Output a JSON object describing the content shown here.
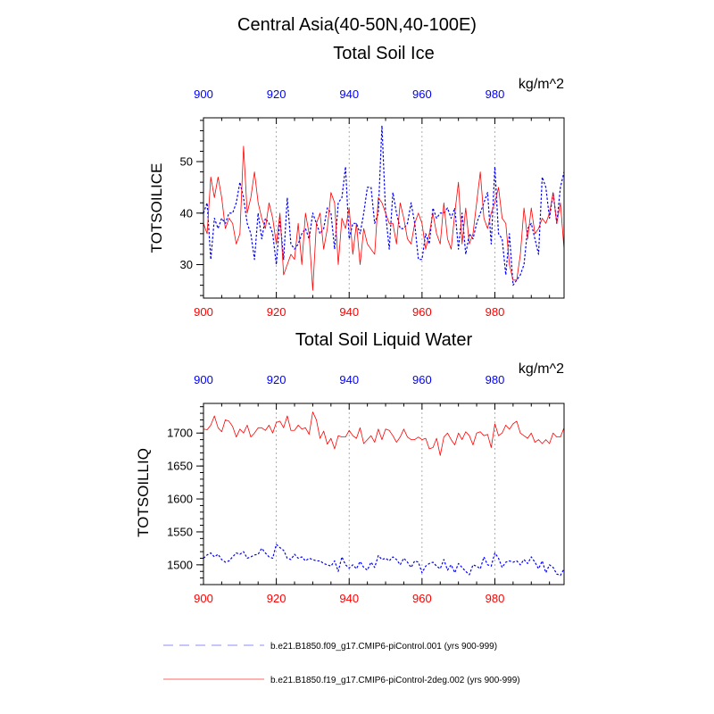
{
  "figure": {
    "main_title": "Central Asia(40-50N,40-100E)"
  },
  "colors": {
    "red": "#ff0000",
    "blue": "#0000ff",
    "axis": "#000000",
    "grid": "#9a9a9a"
  },
  "legend": {
    "entries": [
      {
        "label": "b.e21.B1850.f09_g17.CMIP6-piControl.001 (yrs 900-999)",
        "color": "#0000ff",
        "style": "dashed"
      },
      {
        "label": "b.e21.B1850.f19_g17.CMIP6-piControl-2deg.002 (yrs 900-999)",
        "color": "#ff0000",
        "style": "solid"
      }
    ]
  },
  "chart_data": [
    {
      "type": "line",
      "title": "Total Soil Ice",
      "units": "kg/m^2",
      "ylabel": "TOTSOILICE",
      "xlabel": "",
      "xlim": [
        900,
        999
      ],
      "ylim": [
        23.5,
        58.5
      ],
      "xticks": [
        900,
        920,
        940,
        960,
        980
      ],
      "yticks": [
        30,
        40,
        50
      ],
      "yminor_step": 2,
      "xminor_step": 5,
      "grid_x": [
        920,
        940,
        960,
        980
      ],
      "series": [
        {
          "name": "b.e21.B1850.f09_g17.CMIP6-piControl.001 (yrs 900-999)",
          "color": "#0000ff",
          "style": "dashed",
          "x_start": 900,
          "values": [
            40,
            42,
            31,
            39,
            37,
            39,
            38,
            40,
            40,
            42,
            46,
            43,
            38,
            36,
            31,
            40,
            35,
            39,
            38,
            36,
            30,
            39,
            31,
            43,
            34,
            33,
            34,
            36,
            37,
            35,
            40,
            38,
            36,
            37,
            41,
            40,
            33,
            42,
            43,
            49,
            35,
            38,
            38,
            36,
            40,
            45,
            45,
            38,
            40,
            57,
            40,
            33,
            44,
            40,
            37,
            37,
            38,
            42,
            38,
            31,
            31,
            36,
            34,
            41,
            39,
            40,
            40,
            41,
            39,
            41,
            33,
            40,
            32,
            36,
            35,
            38,
            40,
            42,
            44,
            34,
            49,
            36,
            35,
            28,
            36,
            26,
            27,
            28,
            30,
            37,
            38,
            35,
            32,
            47,
            45,
            39,
            44,
            38,
            45,
            48
          ]
        },
        {
          "name": "b.e21.B1850.f19_g17.CMIP6-piControl-2deg.002 (yrs 900-999)",
          "color": "#ff0000",
          "style": "solid",
          "x_start": 900,
          "values": [
            38,
            36,
            47,
            43,
            47,
            43,
            37,
            39,
            38,
            34,
            36,
            53,
            40,
            43,
            48,
            42,
            39,
            37,
            42,
            39,
            34,
            40,
            28,
            30,
            32,
            31,
            38,
            30,
            40,
            36,
            25,
            38,
            40,
            33,
            37,
            44,
            42,
            30,
            39,
            37,
            41,
            32,
            38,
            30,
            37,
            34,
            33,
            32,
            43,
            42,
            40,
            38,
            38,
            34,
            42,
            39,
            35,
            34,
            38,
            40,
            38,
            33,
            36,
            40,
            36,
            34,
            42,
            35,
            33,
            40,
            46,
            34,
            41,
            34,
            36,
            42,
            48,
            39,
            37,
            40,
            42,
            45,
            39,
            38,
            30,
            27,
            27,
            32,
            41,
            35,
            41,
            36,
            37,
            39,
            38,
            40,
            44,
            38,
            42,
            33
          ]
        }
      ]
    },
    {
      "type": "line",
      "title": "Total Soil Liquid Water",
      "units": "kg/m^2",
      "ylabel": "TOTSOILLIQ",
      "xlabel": "",
      "xlim": [
        900,
        999
      ],
      "ylim": [
        1470,
        1745
      ],
      "xticks": [
        900,
        920,
        940,
        960,
        980
      ],
      "yticks": [
        1500,
        1550,
        1600,
        1650,
        1700
      ],
      "yminor_step": 10,
      "xminor_step": 5,
      "grid_x": [
        920,
        940,
        960,
        980
      ],
      "series": [
        {
          "name": "b.e21.B1850.f09_g17.CMIP6-piControl.001 (yrs 900-999)",
          "color": "#0000ff",
          "style": "dashed",
          "x_start": 900,
          "values": [
            1510,
            1515,
            1518,
            1512,
            1516,
            1508,
            1504,
            1506,
            1512,
            1518,
            1516,
            1520,
            1510,
            1512,
            1515,
            1516,
            1525,
            1518,
            1512,
            1510,
            1531,
            1526,
            1522,
            1510,
            1508,
            1516,
            1510,
            1512,
            1506,
            1510,
            1508,
            1506,
            1506,
            1502,
            1500,
            1498,
            1506,
            1490,
            1512,
            1500,
            1495,
            1500,
            1494,
            1505,
            1496,
            1492,
            1504,
            1496,
            1514,
            1508,
            1510,
            1506,
            1512,
            1508,
            1500,
            1510,
            1504,
            1496,
            1506,
            1504,
            1488,
            1498,
            1502,
            1504,
            1498,
            1494,
            1508,
            1492,
            1500,
            1488,
            1502,
            1496,
            1490,
            1485,
            1500,
            1498,
            1494,
            1512,
            1500,
            1498,
            1518,
            1510,
            1496,
            1504,
            1506,
            1504,
            1506,
            1500,
            1508,
            1502,
            1512,
            1504,
            1494,
            1506,
            1488,
            1500,
            1496,
            1486,
            1484,
            1494
          ]
        },
        {
          "name": "b.e21.B1850.f19_g17.CMIP6-piControl-2deg.002 (yrs 900-999)",
          "color": "#ff0000",
          "style": "solid",
          "x_start": 900,
          "values": [
            1706,
            1705,
            1712,
            1726,
            1708,
            1702,
            1720,
            1718,
            1710,
            1694,
            1706,
            1700,
            1712,
            1694,
            1700,
            1708,
            1708,
            1704,
            1712,
            1700,
            1716,
            1718,
            1708,
            1726,
            1704,
            1704,
            1712,
            1706,
            1708,
            1698,
            1732,
            1720,
            1692,
            1703,
            1683,
            1692,
            1676,
            1696,
            1694,
            1694,
            1704,
            1696,
            1692,
            1708,
            1684,
            1690,
            1696,
            1686,
            1706,
            1690,
            1706,
            1704,
            1696,
            1686,
            1694,
            1706,
            1694,
            1690,
            1690,
            1694,
            1690,
            1692,
            1676,
            1678,
            1692,
            1666,
            1694,
            1700,
            1690,
            1682,
            1700,
            1690,
            1702,
            1696,
            1682,
            1700,
            1702,
            1696,
            1698,
            1678,
            1714,
            1696,
            1700,
            1712,
            1706,
            1714,
            1718,
            1700,
            1696,
            1692,
            1700,
            1686,
            1690,
            1684,
            1690,
            1684,
            1700,
            1694,
            1694,
            1708
          ]
        }
      ]
    }
  ]
}
